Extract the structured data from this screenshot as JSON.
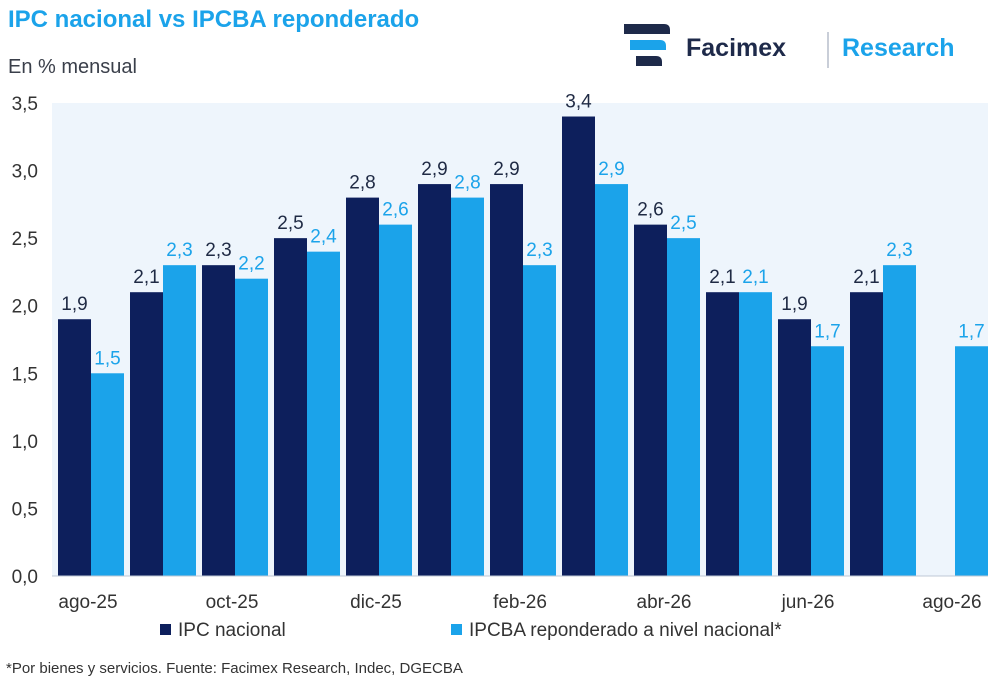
{
  "header": {
    "title": "IPC nacional vs IPCBA reponderado",
    "subtitle": "En % mensual"
  },
  "logo": {
    "brand": "Facimex",
    "division": "Research"
  },
  "colors": {
    "series1": "#0d1f5c",
    "series2": "#1ba3ea",
    "plot_background": "#eef5fc",
    "title": "#1ba3ea"
  },
  "chart_data": {
    "type": "bar",
    "title": "IPC nacional vs IPCBA reponderado",
    "subtitle": "En % mensual",
    "categories": [
      "ago-25",
      "sep-25",
      "oct-25",
      "nov-25",
      "dic-25",
      "ene-26",
      "feb-26",
      "mar-26",
      "abr-26",
      "may-26",
      "jun-26",
      "jul-26",
      "ago-26"
    ],
    "x_tick_labels": [
      "ago-25",
      "",
      "oct-25",
      "",
      "dic-25",
      "",
      "feb-26",
      "",
      "abr-26",
      "",
      "jun-26",
      "",
      "ago-26"
    ],
    "series": [
      {
        "name": "IPC nacional",
        "color": "#0d1f5c",
        "values": [
          1.9,
          2.1,
          2.3,
          2.5,
          2.8,
          2.9,
          2.9,
          3.4,
          2.6,
          2.1,
          1.9,
          2.1,
          null
        ],
        "labels": [
          "1,9",
          "2,1",
          "2,3",
          "2,5",
          "2,8",
          "2,9",
          "2,9",
          "3,4",
          "2,6",
          "2,1",
          "1,9",
          "2,1",
          ""
        ]
      },
      {
        "name": "IPCBA reponderado a nivel nacional*",
        "color": "#1ba3ea",
        "values": [
          1.5,
          2.3,
          2.2,
          2.4,
          2.6,
          2.8,
          2.3,
          2.9,
          2.5,
          2.1,
          1.7,
          2.3,
          1.7
        ],
        "labels": [
          "1,5",
          "2,3",
          "2,2",
          "2,4",
          "2,6",
          "2,8",
          "2,3",
          "2,9",
          "2,5",
          "2,1",
          "1,7",
          "2,3",
          "1,7"
        ]
      }
    ],
    "ylim": [
      0,
      3.5
    ],
    "y_ticks": [
      0,
      0.5,
      1.0,
      1.5,
      2.0,
      2.5,
      3.0,
      3.5
    ],
    "y_tick_labels": [
      "0,0",
      "0,5",
      "1,0",
      "1,5",
      "2,0",
      "2,5",
      "3,0",
      "3,5"
    ],
    "xlabel": "",
    "ylabel": "",
    "grid": false,
    "legend_position": "bottom"
  },
  "footnote": "*Por bienes y servicios. Fuente: Facimex Research, Indec, DGECBA"
}
